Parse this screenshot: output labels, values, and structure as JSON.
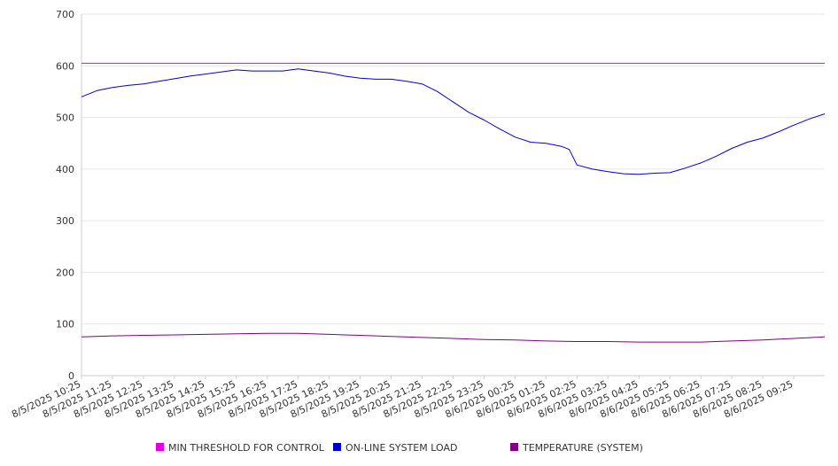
{
  "chart_data": {
    "type": "line",
    "title": "",
    "xlabel": "",
    "ylabel": "",
    "ylim": [
      0,
      700
    ],
    "yticks": [
      0,
      100,
      200,
      300,
      400,
      500,
      600,
      700
    ],
    "grid": true,
    "legend_position": "bottom",
    "x_start": "8/5/2025 10:25",
    "x_end": "8/6/2025 10:25",
    "x_tick_labels": [
      "8/5/2025 10:25",
      "8/5/2025 11:25",
      "8/5/2025 12:25",
      "8/5/2025 13:25",
      "8/5/2025 14:25",
      "8/5/2025 15:25",
      "8/5/2025 16:25",
      "8/5/2025 17:25",
      "8/5/2025 18:25",
      "8/5/2025 19:25",
      "8/5/2025 20:25",
      "8/5/2025 21:25",
      "8/5/2025 22:25",
      "8/5/2025 23:25",
      "8/6/2025 00:25",
      "8/6/2025 01:25",
      "8/6/2025 02:25",
      "8/6/2025 03:25",
      "8/6/2025 04:25",
      "8/6/2025 05:25",
      "8/6/2025 06:25",
      "8/6/2025 07:25",
      "8/6/2025 08:25",
      "8/6/2025 09:25"
    ],
    "series": [
      {
        "name": "MIN THRESHOLD FOR CONTROL",
        "color": "#e000e0",
        "points": [
          [
            "8/5/2025 10:25",
            605
          ],
          [
            "8/6/2025 10:25",
            605
          ]
        ]
      },
      {
        "name": "ON-LINE SYSTEM LOAD",
        "color": "#0000cc",
        "points": [
          [
            "8/5/2025 10:25",
            540
          ],
          [
            "8/5/2025 10:55",
            552
          ],
          [
            "8/5/2025 11:25",
            558
          ],
          [
            "8/5/2025 11:55",
            562
          ],
          [
            "8/5/2025 12:25",
            565
          ],
          [
            "8/5/2025 12:55",
            570
          ],
          [
            "8/5/2025 13:25",
            575
          ],
          [
            "8/5/2025 13:55",
            580
          ],
          [
            "8/5/2025 14:25",
            584
          ],
          [
            "8/5/2025 14:55",
            588
          ],
          [
            "8/5/2025 15:25",
            592
          ],
          [
            "8/5/2025 15:55",
            590
          ],
          [
            "8/5/2025 16:25",
            590
          ],
          [
            "8/5/2025 16:55",
            590
          ],
          [
            "8/5/2025 17:25",
            594
          ],
          [
            "8/5/2025 17:55",
            590
          ],
          [
            "8/5/2025 18:25",
            586
          ],
          [
            "8/5/2025 18:55",
            580
          ],
          [
            "8/5/2025 19:25",
            576
          ],
          [
            "8/5/2025 19:55",
            574
          ],
          [
            "8/5/2025 20:25",
            574
          ],
          [
            "8/5/2025 20:55",
            570
          ],
          [
            "8/5/2025 21:25",
            565
          ],
          [
            "8/5/2025 21:55",
            550
          ],
          [
            "8/5/2025 22:25",
            530
          ],
          [
            "8/5/2025 22:55",
            510
          ],
          [
            "8/5/2025 23:25",
            495
          ],
          [
            "8/5/2025 23:55",
            478
          ],
          [
            "8/6/2025 00:25",
            462
          ],
          [
            "8/6/2025 00:55",
            452
          ],
          [
            "8/6/2025 01:25",
            450
          ],
          [
            "8/6/2025 01:55",
            444
          ],
          [
            "8/6/2025 02:10",
            438
          ],
          [
            "8/6/2025 02:25",
            408
          ],
          [
            "8/6/2025 02:55",
            400
          ],
          [
            "8/6/2025 03:25",
            395
          ],
          [
            "8/6/2025 03:55",
            391
          ],
          [
            "8/6/2025 04:25",
            390
          ],
          [
            "8/6/2025 04:55",
            392
          ],
          [
            "8/6/2025 05:25",
            393
          ],
          [
            "8/6/2025 05:55",
            402
          ],
          [
            "8/6/2025 06:25",
            412
          ],
          [
            "8/6/2025 06:55",
            425
          ],
          [
            "8/6/2025 07:25",
            440
          ],
          [
            "8/6/2025 07:55",
            452
          ],
          [
            "8/6/2025 08:25",
            460
          ],
          [
            "8/6/2025 08:55",
            472
          ],
          [
            "8/6/2025 09:25",
            485
          ],
          [
            "8/6/2025 09:55",
            497
          ],
          [
            "8/6/2025 10:25",
            507
          ]
        ]
      },
      {
        "name": "TEMPERATURE (SYSTEM)",
        "color": "#800080",
        "points": [
          [
            "8/5/2025 10:25",
            75
          ],
          [
            "8/5/2025 11:25",
            77
          ],
          [
            "8/5/2025 12:25",
            78
          ],
          [
            "8/5/2025 13:25",
            79
          ],
          [
            "8/5/2025 14:25",
            80
          ],
          [
            "8/5/2025 15:25",
            81
          ],
          [
            "8/5/2025 16:25",
            82
          ],
          [
            "8/5/2025 17:25",
            82
          ],
          [
            "8/5/2025 18:25",
            80
          ],
          [
            "8/5/2025 19:25",
            78
          ],
          [
            "8/5/2025 20:25",
            76
          ],
          [
            "8/5/2025 21:25",
            74
          ],
          [
            "8/5/2025 22:25",
            72
          ],
          [
            "8/5/2025 23:25",
            70
          ],
          [
            "8/6/2025 00:25",
            69
          ],
          [
            "8/6/2025 01:25",
            67
          ],
          [
            "8/6/2025 02:25",
            66
          ],
          [
            "8/6/2025 03:25",
            66
          ],
          [
            "8/6/2025 04:25",
            65
          ],
          [
            "8/6/2025 05:25",
            65
          ],
          [
            "8/6/2025 06:25",
            65
          ],
          [
            "8/6/2025 07:25",
            67
          ],
          [
            "8/6/2025 08:25",
            69
          ],
          [
            "8/6/2025 09:25",
            72
          ],
          [
            "8/6/2025 10:25",
            75
          ]
        ]
      }
    ]
  }
}
